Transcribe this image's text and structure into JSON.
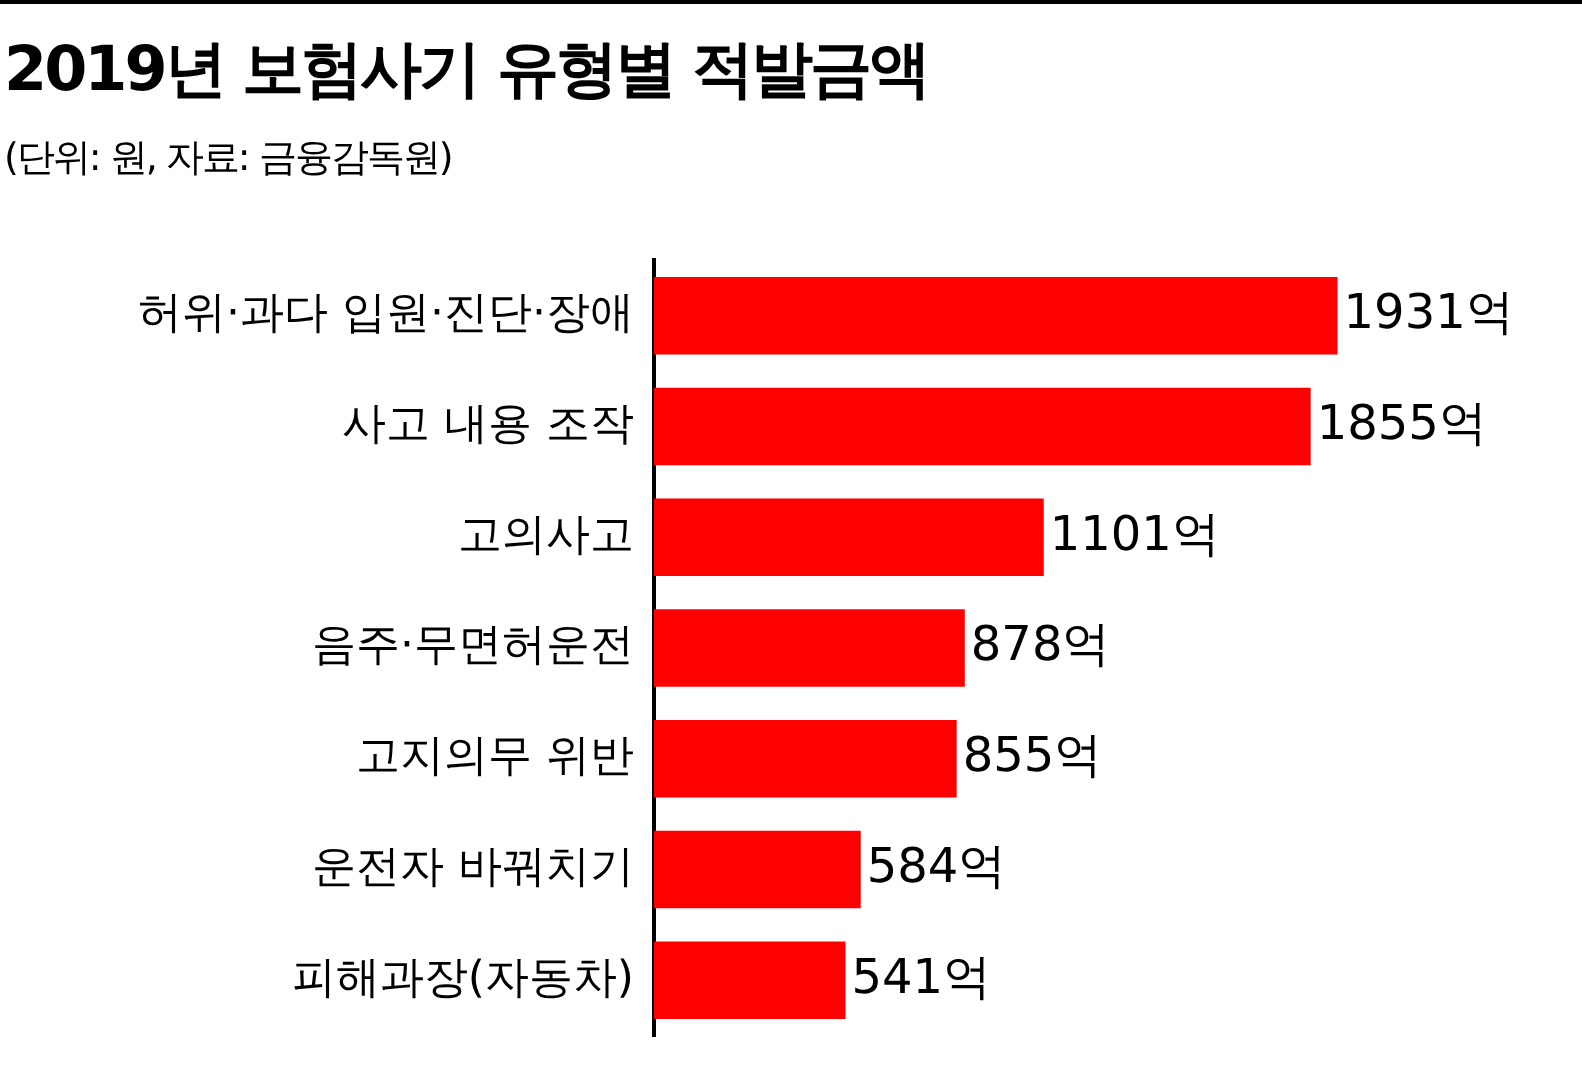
{
  "chart_data": {
    "type": "bar",
    "orientation": "horizontal",
    "title": "2019년 보험사기 유형별 적발금액",
    "subtitle": "(단위: 원, 자료: 금융감독원)",
    "categories": [
      "허위·과다 입원·진단·장애",
      "사고 내용 조작",
      "고의사고",
      "음주·무면허운전",
      "고지의무 위반",
      "운전자 바꿔치기",
      "피해과장(자동차)"
    ],
    "values": [
      1931,
      1855,
      1101,
      878,
      855,
      584,
      541
    ],
    "value_labels": [
      "1931억",
      "1855억",
      "1101억",
      "878억",
      "855억",
      "584억",
      "541억"
    ],
    "color": "#ff0000",
    "tick_labels": "y",
    "grid": false,
    "legend": false
  }
}
